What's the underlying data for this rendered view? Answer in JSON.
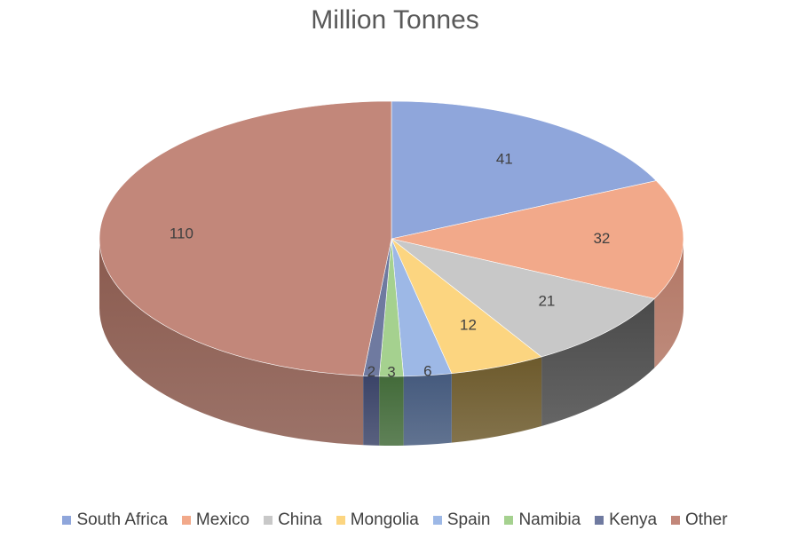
{
  "chart_data": {
    "type": "pie",
    "title": "Million Tonnes",
    "categories": [
      "South Africa",
      "Mexico",
      "China",
      "Mongolia",
      "Spain",
      "Namibia",
      "Kenya",
      "Other"
    ],
    "values": [
      41,
      32,
      21,
      12,
      6,
      3,
      2,
      110
    ],
    "colors": [
      "#8FA6DB",
      "#F2A98A",
      "#C8C8C8",
      "#FCD580",
      "#9DB8E6",
      "#A5D18F",
      "#6F7AA0",
      "#C2877A"
    ],
    "side_colors": [
      "#5A6C93",
      "#B27664",
      "#4A4A4A",
      "#6D5A2C",
      "#455A7D",
      "#436B3A",
      "#3B4468",
      "#8A5A4E"
    ],
    "legend_position": "bottom",
    "data_labels": true
  }
}
